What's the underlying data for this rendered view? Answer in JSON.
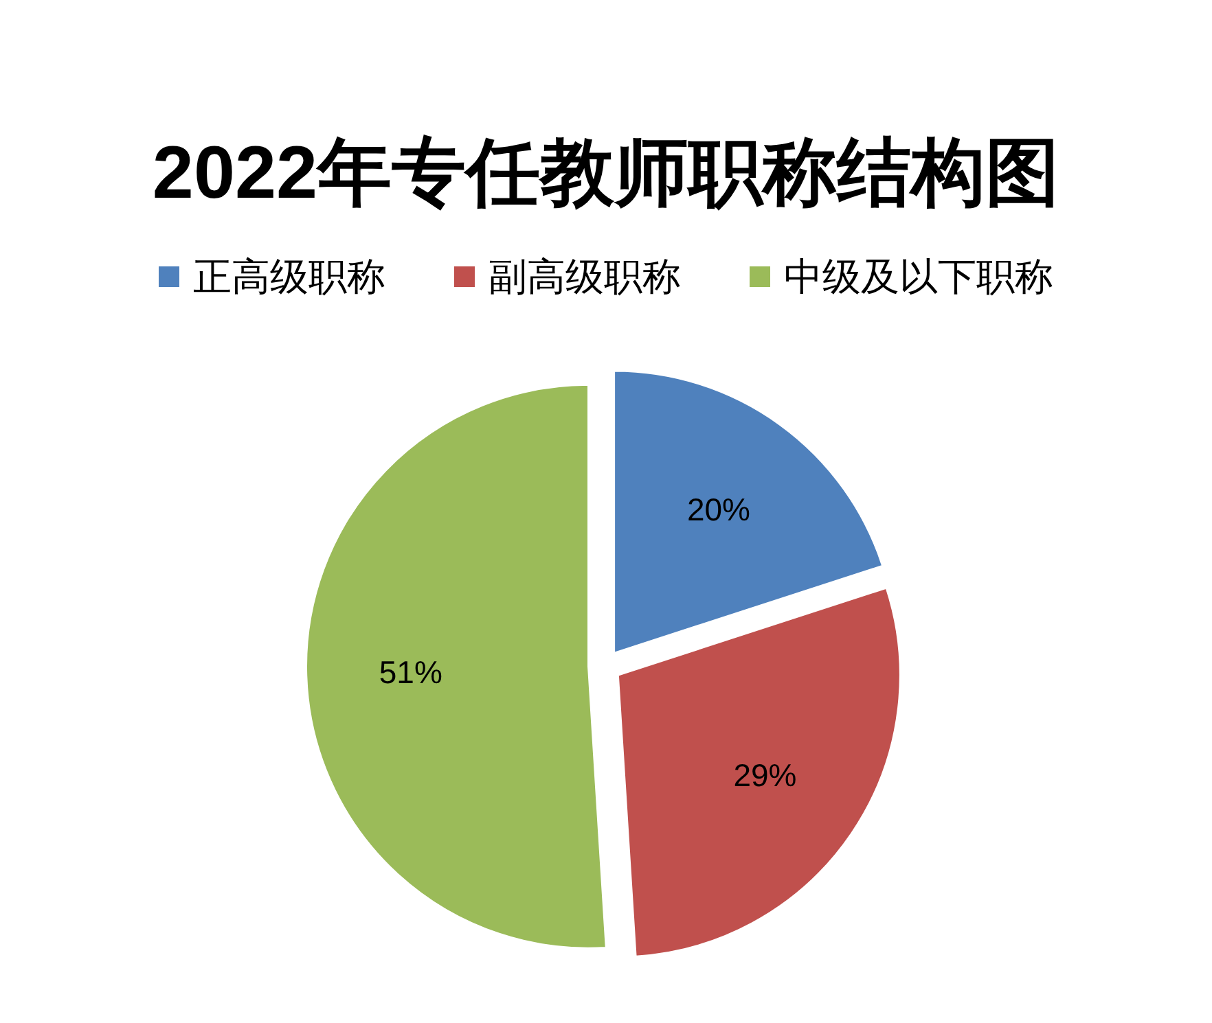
{
  "chart_data": {
    "type": "pie",
    "title": "2022年专任教师职称结构图",
    "categories": [
      "正高级职称",
      "副高级职称",
      "中级及以下职称"
    ],
    "values": [
      20,
      29,
      51
    ],
    "colors": [
      "#4f81bd",
      "#c0504d",
      "#9bbb59"
    ],
    "value_labels": [
      "20%",
      "29%",
      "51%"
    ],
    "legend": "top"
  }
}
